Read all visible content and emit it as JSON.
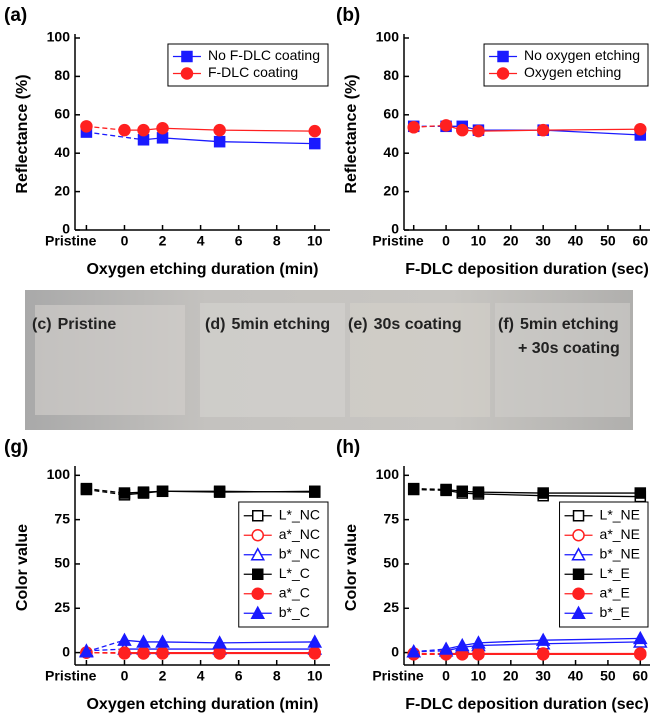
{
  "chart_data": [
    {
      "type": "line",
      "panel_label": "(a)",
      "x_label": "Oxygen etching duration (min)",
      "y_label": "Reflectance (%)",
      "xlim": [
        -2.6,
        10.8
      ],
      "ylim": [
        0,
        100
      ],
      "xticks": [
        {
          "value": -2,
          "label": "Pristine"
        },
        0,
        2,
        4,
        6,
        8,
        10
      ],
      "yticks": [
        0,
        20,
        40,
        60,
        80,
        100
      ],
      "legend": "upper right",
      "legend_box": true,
      "dashed_first_segment": true,
      "series": [
        {
          "name": "No F-DLC coating",
          "color": "#1a1aff",
          "marker": "square",
          "filled": true,
          "x": [
            -2,
            1,
            2,
            5,
            10
          ],
          "values": [
            51,
            47,
            48,
            46,
            45
          ]
        },
        {
          "name": "F-DLC coating",
          "color": "#ff2020",
          "marker": "circle",
          "filled": true,
          "x": [
            -2,
            0,
            1,
            2,
            5,
            10
          ],
          "values": [
            54,
            52,
            52,
            53,
            52,
            51.5
          ]
        }
      ]
    },
    {
      "type": "line",
      "panel_label": "(b)",
      "x_label": "F-DLC deposition duration (sec)",
      "y_label": "Reflectance (%)",
      "xlim": [
        -13,
        63
      ],
      "ylim": [
        0,
        100
      ],
      "xticks": [
        {
          "value": -10,
          "label": "Pristine"
        },
        0,
        10,
        20,
        30,
        40,
        50,
        60
      ],
      "yticks": [
        0,
        20,
        40,
        60,
        80,
        100
      ],
      "legend": "upper right",
      "legend_box": true,
      "dashed_first_segment": true,
      "series": [
        {
          "name": "No oxygen etching",
          "color": "#1a1aff",
          "marker": "square",
          "filled": true,
          "x": [
            -10,
            0,
            5,
            10,
            30,
            60
          ],
          "values": [
            54,
            54,
            54,
            52,
            52,
            49.5
          ]
        },
        {
          "name": "Oxygen etching",
          "color": "#ff2020",
          "marker": "circle",
          "filled": true,
          "x": [
            -10,
            0,
            5,
            10,
            30,
            60
          ],
          "values": [
            53.5,
            54.5,
            52,
            51.5,
            52,
            52.5
          ]
        }
      ]
    },
    {
      "type": "line",
      "panel_label": "(g)",
      "x_label": "Oxygen etching duration (min)",
      "y_label": "Color value",
      "xlim": [
        -2.6,
        10.8
      ],
      "ylim": [
        -7,
        103
      ],
      "xticks": [
        {
          "value": -2,
          "label": "Pristine"
        },
        0,
        2,
        4,
        6,
        8,
        10
      ],
      "yticks": [
        0,
        25,
        50,
        75,
        100
      ],
      "legend": "lower right",
      "legend_box": true,
      "dashed_first_segment": true,
      "series": [
        {
          "name": "L*_NC",
          "color": "#000000",
          "marker": "square",
          "filled": false,
          "x": [
            -2,
            0,
            1,
            2,
            5,
            10
          ],
          "values": [
            92,
            89,
            90,
            91,
            90.5,
            91
          ]
        },
        {
          "name": "a*_NC",
          "color": "#ff2020",
          "marker": "circle",
          "filled": false,
          "x": [
            -2,
            0,
            1,
            2,
            5,
            10
          ],
          "values": [
            0,
            -0.5,
            -0.5,
            -0.5,
            -0.5,
            -0.5
          ]
        },
        {
          "name": "b*_NC",
          "color": "#1a1aff",
          "marker": "triangle",
          "filled": false,
          "x": [
            -2,
            0,
            1,
            2,
            5,
            10
          ],
          "values": [
            1,
            2,
            2,
            2,
            2,
            2
          ]
        },
        {
          "name": "L*_C",
          "color": "#000000",
          "marker": "square",
          "filled": true,
          "x": [
            -2,
            0,
            1,
            2,
            5,
            10
          ],
          "values": [
            92.5,
            90,
            90.5,
            91,
            91,
            90.5
          ]
        },
        {
          "name": "a*_C",
          "color": "#ff2020",
          "marker": "circle",
          "filled": true,
          "x": [
            -2,
            0,
            1,
            2,
            5,
            10
          ],
          "values": [
            0,
            0,
            0,
            0,
            0,
            0
          ]
        },
        {
          "name": "b*_C",
          "color": "#1a1aff",
          "marker": "triangle",
          "filled": true,
          "x": [
            -2,
            0,
            1,
            2,
            5,
            10
          ],
          "values": [
            0.5,
            7,
            6,
            6,
            5.5,
            6
          ]
        }
      ]
    },
    {
      "type": "line",
      "panel_label": "(h)",
      "x_label": "F-DLC deposition duration (sec)",
      "y_label": "Color value",
      "xlim": [
        -13,
        63
      ],
      "ylim": [
        -7,
        103
      ],
      "xticks": [
        {
          "value": -10,
          "label": "Pristine"
        },
        0,
        10,
        20,
        30,
        40,
        50,
        60
      ],
      "yticks": [
        0,
        25,
        50,
        75,
        100
      ],
      "legend": "lower right",
      "legend_box": true,
      "dashed_first_segment": true,
      "series": [
        {
          "name": "L*_NE",
          "color": "#000000",
          "marker": "square",
          "filled": false,
          "x": [
            -10,
            0,
            5,
            10,
            30,
            60
          ],
          "values": [
            92,
            91.5,
            90,
            89.5,
            88.5,
            88
          ]
        },
        {
          "name": "a*_NE",
          "color": "#ff2020",
          "marker": "circle",
          "filled": false,
          "x": [
            -10,
            0,
            5,
            10,
            30,
            60
          ],
          "values": [
            -1,
            -1,
            -1,
            -1,
            -1,
            -1
          ]
        },
        {
          "name": "b*_NE",
          "color": "#1a1aff",
          "marker": "triangle",
          "filled": false,
          "x": [
            -10,
            0,
            5,
            10,
            30,
            60
          ],
          "values": [
            0.5,
            1,
            3,
            4,
            5,
            6
          ]
        },
        {
          "name": "L*_E",
          "color": "#000000",
          "marker": "square",
          "filled": true,
          "x": [
            -10,
            0,
            5,
            10,
            30,
            60
          ],
          "values": [
            92.5,
            92,
            91,
            90.5,
            90,
            90
          ]
        },
        {
          "name": "a*_E",
          "color": "#ff2020",
          "marker": "circle",
          "filled": true,
          "x": [
            -10,
            0,
            5,
            10,
            30,
            60
          ],
          "values": [
            -0.5,
            -0.5,
            -0.5,
            -0.5,
            -0.5,
            -0.5
          ]
        },
        {
          "name": "b*_E",
          "color": "#1a1aff",
          "marker": "triangle",
          "filled": true,
          "x": [
            -10,
            0,
            5,
            10,
            30,
            60
          ],
          "values": [
            0.5,
            2,
            4,
            5.5,
            7,
            8
          ]
        }
      ]
    }
  ],
  "photo": {
    "labels": [
      {
        "panel": "(c)",
        "lines": [
          "Pristine"
        ]
      },
      {
        "panel": "(d)",
        "lines": [
          "5min etching"
        ]
      },
      {
        "panel": "(e)",
        "lines": [
          "30s coating"
        ]
      },
      {
        "panel": "(f)",
        "lines": [
          "5min etching",
          "+ 30s coating"
        ]
      }
    ]
  }
}
